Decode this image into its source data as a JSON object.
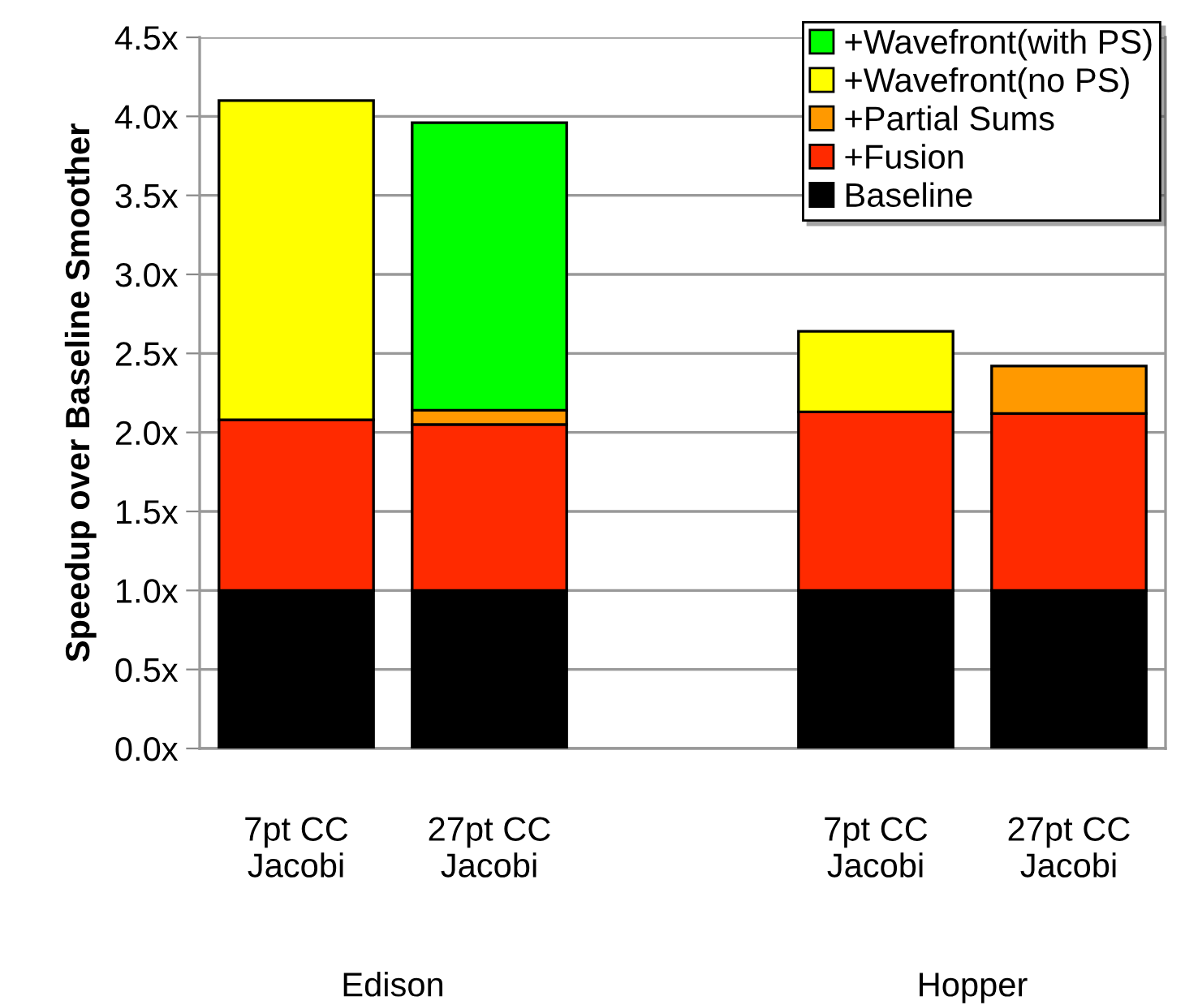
{
  "chart_data": {
    "type": "bar",
    "stacked": true,
    "ylabel": "Speedup over Baseline Smoother",
    "categories": [
      "7pt CC\nJacobi",
      "27pt CC\nJacobi",
      null,
      "7pt CC\nJacobi",
      "27pt CC\nJacobi"
    ],
    "series": [
      {
        "name": "Baseline",
        "color": "#000000",
        "values": [
          1.0,
          1.0,
          null,
          1.0,
          1.0
        ]
      },
      {
        "name": "+Fusion",
        "color": "#ff2a00",
        "values": [
          1.08,
          1.05,
          null,
          1.13,
          1.12
        ]
      },
      {
        "name": "+Partial Sums",
        "color": "#ff9900",
        "values": [
          null,
          0.09,
          null,
          null,
          0.3
        ]
      },
      {
        "name": "+Wavefront(no PS)",
        "color": "#ffff00",
        "values": [
          2.02,
          null,
          null,
          0.51,
          null
        ]
      },
      {
        "name": "+Wavefront(with PS)",
        "color": "#00ff00",
        "values": [
          null,
          1.82,
          null,
          null,
          null
        ]
      }
    ],
    "ylim": [
      0,
      4.5
    ],
    "yticks": [
      {
        "value": 0,
        "label": "0.0x"
      },
      {
        "value": 0.5,
        "label": "0.5x"
      },
      {
        "value": 1,
        "label": "1.0x"
      },
      {
        "value": 1.5,
        "label": "1.5x"
      },
      {
        "value": 2,
        "label": "2.0x"
      },
      {
        "value": 2.5,
        "label": "2.5x"
      },
      {
        "value": 3,
        "label": "3.0x"
      },
      {
        "value": 3.5,
        "label": "3.5x"
      },
      {
        "value": 4,
        "label": "4.0x"
      },
      {
        "value": 4.5,
        "label": "4.5x"
      }
    ],
    "grid": "y",
    "legend": "top right",
    "annotations": [
      "Edison",
      "Hopper"
    ]
  }
}
